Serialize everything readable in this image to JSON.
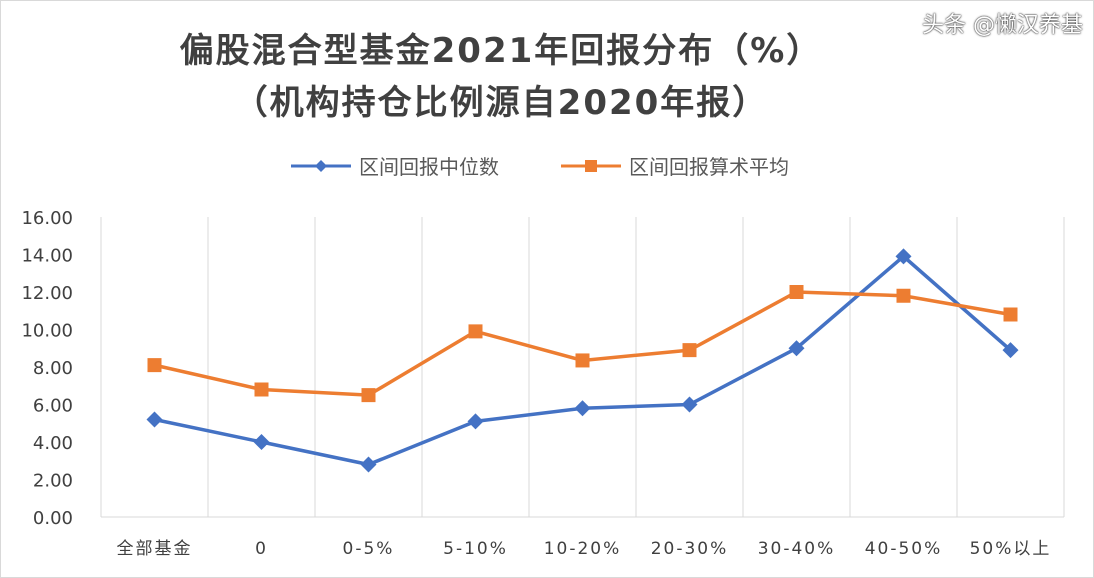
{
  "chart_data": {
    "type": "line",
    "title": "偏股混合型基金2021年回报分布（%）",
    "subtitle": "（机构持仓比例源自2020年报）",
    "categories": [
      "全部基金",
      "0",
      "0-5%",
      "5-10%",
      "10-20%",
      "20-30%",
      "30-40%",
      "40-50%",
      "50%以上"
    ],
    "series": [
      {
        "name": "区间回报中位数",
        "color": "#4472C4",
        "marker": "diamond",
        "values": [
          5.2,
          4.0,
          2.8,
          5.1,
          5.8,
          6.0,
          9.0,
          13.9,
          8.9
        ]
      },
      {
        "name": "区间回报算术平均",
        "color": "#ED7D31",
        "marker": "square",
        "values": [
          8.1,
          6.8,
          6.5,
          9.9,
          8.35,
          8.9,
          12.0,
          11.8,
          10.8
        ]
      }
    ],
    "ylim": [
      0,
      16
    ],
    "yticks": [
      "0.00",
      "2.00",
      "4.00",
      "6.00",
      "8.00",
      "10.00",
      "12.00",
      "14.00",
      "16.00"
    ],
    "grid": "vertical",
    "legend": "top"
  },
  "watermark": "头条 @懒汉养基"
}
